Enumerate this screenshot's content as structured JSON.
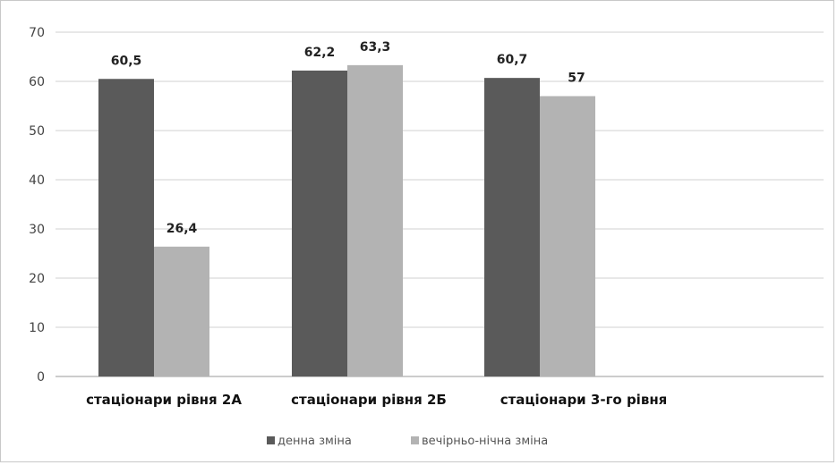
{
  "chart_data": {
    "type": "bar",
    "categories": [
      "стаціонари рівня 2А",
      "стаціонари рівня 2Б",
      "стаціонари  3-го рівня"
    ],
    "series": [
      {
        "name": "денна зміна",
        "values": [
          60.5,
          62.2,
          60.7
        ],
        "labels": [
          "60,5",
          "62,2",
          "60,7"
        ],
        "color": "#5a5a5a"
      },
      {
        "name": "вечірньо-нічна зміна",
        "values": [
          26.4,
          63.3,
          57
        ],
        "labels": [
          "26,4",
          "63,3",
          "57"
        ],
        "color": "#b3b3b3"
      }
    ],
    "ylim": [
      0,
      70
    ],
    "yticks": [
      0,
      10,
      20,
      30,
      40,
      50,
      60,
      70
    ],
    "grid": true,
    "legend_position": "bottom",
    "title": "",
    "xlabel": "",
    "ylabel": ""
  }
}
